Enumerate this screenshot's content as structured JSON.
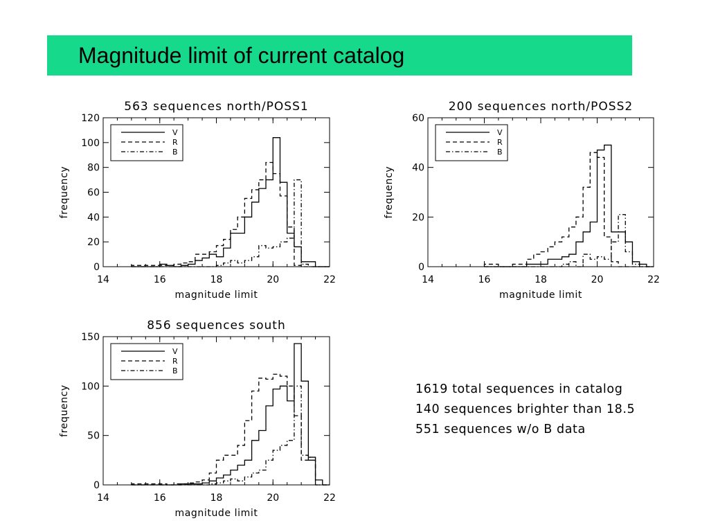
{
  "slide": {
    "title": "Magnitude limit of current catalog",
    "notes": [
      "1619 total sequences in catalog",
      "140 sequences brighter than 18.5",
      "551 sequences w/o B data"
    ]
  },
  "chart_data": [
    {
      "type": "line",
      "title": "563 sequences north/POSS1",
      "xlabel": "magnitude limit",
      "ylabel": "frequency",
      "xlim": [
        14,
        22
      ],
      "ylim": [
        0,
        120
      ],
      "xticks": [
        14,
        16,
        18,
        20,
        22
      ],
      "yticks": [
        0,
        20,
        40,
        60,
        80,
        100,
        120
      ],
      "grid": false,
      "legend_position": "top-left",
      "x": [
        15.0,
        15.25,
        15.5,
        15.75,
        16.0,
        16.25,
        16.5,
        16.75,
        17.0,
        17.25,
        17.5,
        17.75,
        18.0,
        18.25,
        18.5,
        18.75,
        19.0,
        19.25,
        19.5,
        19.75,
        20.0,
        20.25,
        20.5,
        20.75,
        21.0,
        21.25,
        21.5,
        21.75
      ],
      "series": [
        {
          "name": "V",
          "style": "solid",
          "values": [
            0,
            0,
            0,
            0,
            2,
            1,
            0,
            1,
            2,
            5,
            7,
            10,
            8,
            15,
            27,
            27,
            40,
            52,
            63,
            70,
            104,
            68,
            27,
            16,
            4,
            4,
            0,
            0
          ]
        },
        {
          "name": "R",
          "style": "dashed",
          "values": [
            1,
            1,
            1,
            1,
            1,
            1,
            2,
            3,
            4,
            10,
            10,
            12,
            17,
            22,
            30,
            40,
            55,
            62,
            70,
            84,
            75,
            57,
            32,
            1,
            0,
            0,
            0,
            0
          ]
        },
        {
          "name": "B",
          "style": "dashdot",
          "values": [
            0,
            0,
            0,
            0,
            0,
            0,
            0,
            0,
            0,
            0,
            0,
            0,
            1,
            3,
            5,
            3,
            5,
            8,
            17,
            15,
            16,
            20,
            23,
            70,
            2,
            0,
            0,
            0
          ]
        }
      ]
    },
    {
      "type": "line",
      "title": "200 sequences north/POSS2",
      "xlabel": "magnitude limit",
      "ylabel": "frequency",
      "xlim": [
        14,
        22
      ],
      "ylim": [
        0,
        60
      ],
      "xticks": [
        14,
        16,
        18,
        20,
        22
      ],
      "yticks": [
        0,
        20,
        40,
        60
      ],
      "grid": false,
      "legend_position": "top-left",
      "x": [
        16.0,
        16.25,
        16.5,
        16.75,
        17.0,
        17.25,
        17.5,
        17.75,
        18.0,
        18.25,
        18.5,
        18.75,
        19.0,
        19.25,
        19.5,
        19.75,
        20.0,
        20.25,
        20.5,
        20.75,
        21.0,
        21.25,
        21.5,
        21.75
      ],
      "series": [
        {
          "name": "V",
          "style": "solid",
          "values": [
            0,
            0,
            0,
            0,
            0,
            0,
            1,
            1,
            1,
            3,
            3,
            4,
            5,
            10,
            14,
            18,
            47,
            49,
            14,
            14,
            10,
            2,
            1,
            0
          ]
        },
        {
          "name": "R",
          "style": "dashed",
          "values": [
            1,
            1,
            0,
            0,
            1,
            1,
            3,
            5,
            6,
            8,
            10,
            12,
            16,
            20,
            32,
            46,
            44,
            12,
            2,
            0,
            0,
            0,
            0,
            0
          ]
        },
        {
          "name": "B",
          "style": "dashdot",
          "values": [
            0,
            0,
            0,
            0,
            0,
            0,
            0,
            0,
            0,
            0,
            0,
            1,
            2,
            0,
            5,
            3,
            4,
            3,
            10,
            21,
            6,
            1,
            0,
            0
          ]
        }
      ]
    },
    {
      "type": "line",
      "title": "856 sequences south",
      "xlabel": "magnitude limit",
      "ylabel": "frequency",
      "xlim": [
        14,
        22
      ],
      "ylim": [
        0,
        150
      ],
      "xticks": [
        14,
        16,
        18,
        20,
        22
      ],
      "yticks": [
        0,
        50,
        100,
        150
      ],
      "grid": false,
      "legend_position": "top-left",
      "x": [
        15.0,
        15.25,
        15.5,
        15.75,
        16.0,
        16.25,
        16.5,
        16.75,
        17.0,
        17.25,
        17.5,
        17.75,
        18.0,
        18.25,
        18.5,
        18.75,
        19.0,
        19.25,
        19.5,
        19.75,
        20.0,
        20.25,
        20.5,
        20.75,
        21.0,
        21.25,
        21.5,
        21.75
      ],
      "series": [
        {
          "name": "V",
          "style": "solid",
          "values": [
            0,
            0,
            0,
            0,
            0,
            0,
            0,
            1,
            1,
            1,
            2,
            4,
            7,
            10,
            15,
            20,
            25,
            45,
            55,
            80,
            97,
            100,
            85,
            143,
            105,
            25,
            5,
            0
          ]
        },
        {
          "name": "R",
          "style": "dashed",
          "values": [
            1,
            1,
            1,
            1,
            1,
            0,
            1,
            1,
            2,
            3,
            5,
            12,
            25,
            30,
            30,
            40,
            65,
            95,
            108,
            107,
            112,
            110,
            100,
            70,
            25,
            28,
            0,
            0
          ]
        },
        {
          "name": "B",
          "style": "dashdot",
          "values": [
            0,
            0,
            0,
            0,
            0,
            0,
            0,
            0,
            0,
            0,
            0,
            1,
            2,
            4,
            6,
            4,
            8,
            12,
            15,
            25,
            35,
            40,
            45,
            100,
            30,
            28,
            0,
            0
          ]
        }
      ]
    }
  ]
}
